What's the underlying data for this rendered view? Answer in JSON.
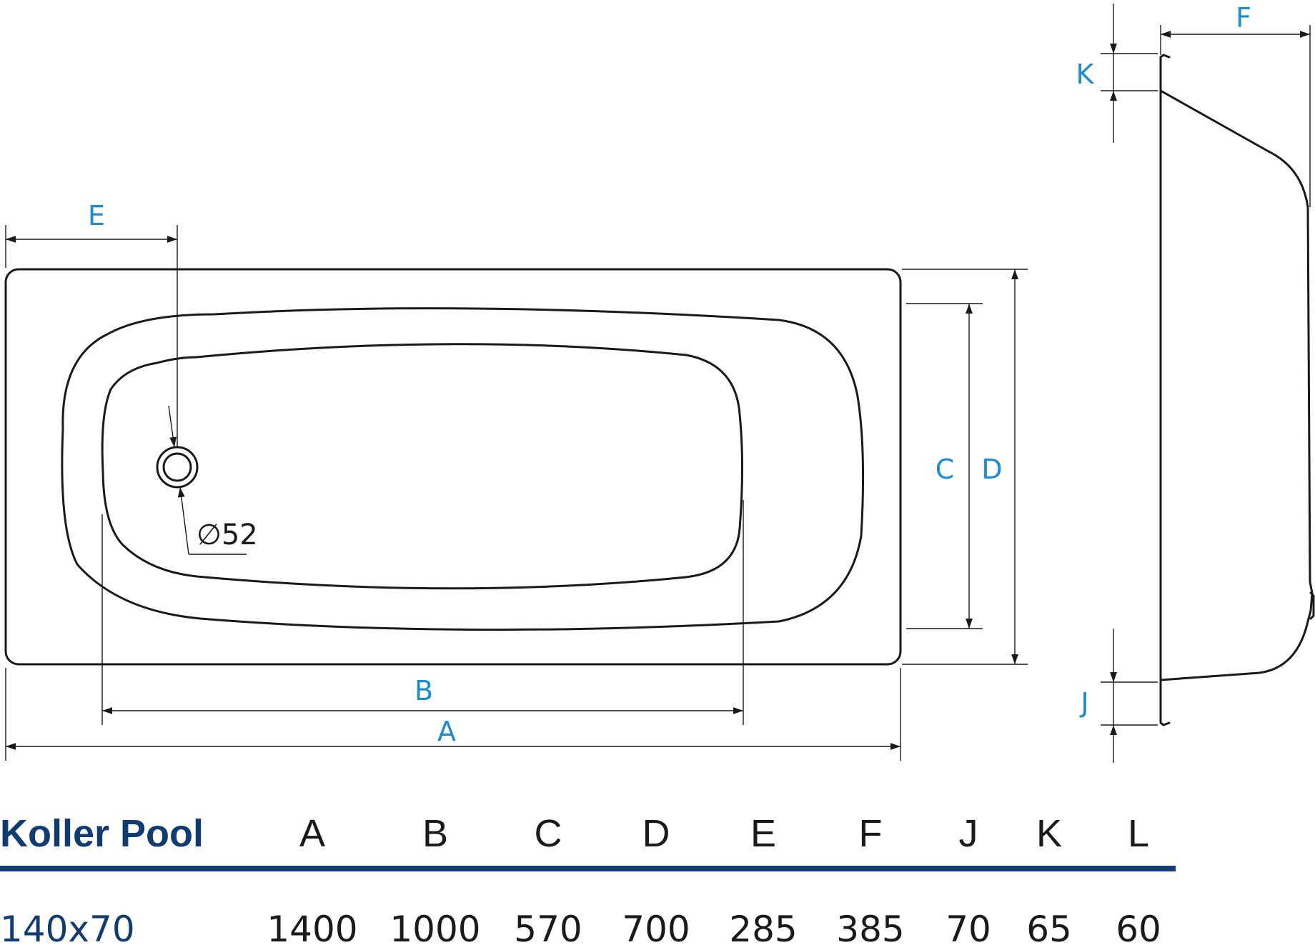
{
  "drawing": {
    "dimension_labels": {
      "a": "A",
      "b": "B",
      "c": "C",
      "d": "D",
      "e": "E",
      "f": "F",
      "j": "J",
      "k": "K"
    },
    "drain_note": "∅52",
    "colors": {
      "outline": "#1a1a1a",
      "dimension_label": "#1e8ccc"
    }
  },
  "table": {
    "title": "Koller Pool",
    "columns": [
      "A",
      "B",
      "C",
      "D",
      "E",
      "F",
      "J",
      "K",
      "L"
    ],
    "rows": [
      {
        "model": "140x70",
        "values": [
          "1400",
          "1000",
          "570",
          "700",
          "285",
          "385",
          "70",
          "65",
          "60"
        ]
      }
    ],
    "colors": {
      "title": "#123c70",
      "rule": "#123c70",
      "text": "#1a1a1a"
    }
  }
}
